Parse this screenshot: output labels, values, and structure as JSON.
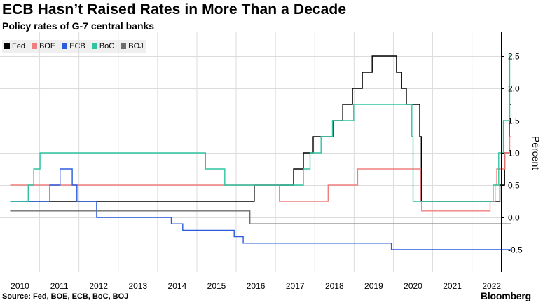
{
  "header": {
    "title": "ECB Hasn’t Raised Rates in More Than a Decade",
    "subtitle": "Policy rates of G-7 central banks"
  },
  "footer": {
    "source": "Source: Fed, BOE, ECB, BoC, BOJ",
    "brand": "Bloomberg"
  },
  "chart_data": {
    "type": "line",
    "title": "ECB Hasn’t Raised Rates in More Than a Decade",
    "subtitle": "Policy rates of G-7 central banks",
    "xlabel": "",
    "ylabel": "Percent",
    "xlim": [
      2009.75,
      2022.35
    ],
    "ylim": [
      -0.8,
      2.75
    ],
    "x_ticks": [
      2010,
      2011,
      2012,
      2013,
      2014,
      2015,
      2016,
      2017,
      2018,
      2019,
      2020,
      2021,
      2022
    ],
    "x_tick_labels": [
      "2010",
      "2011",
      "2012",
      "2013",
      "2014",
      "2015",
      "2016",
      "2017",
      "2018",
      "2019",
      "2020",
      "2021",
      "2022"
    ],
    "y_ticks": [
      2.5,
      2.0,
      1.5,
      1.0,
      0.5,
      0.0,
      -0.5
    ],
    "y_tick_labels": [
      "2.5",
      "2.0",
      "1.5",
      "1.0",
      "0.5",
      "0.0",
      "-0.5"
    ],
    "grid": true,
    "y_axis_side": "right",
    "legend_position": "top-left",
    "series": [
      {
        "name": "Fed",
        "color": "#000000",
        "points": [
          [
            2009.75,
            0.25
          ],
          [
            2015.96,
            0.25
          ],
          [
            2015.96,
            0.5
          ],
          [
            2016.96,
            0.5
          ],
          [
            2016.96,
            0.75
          ],
          [
            2017.21,
            0.75
          ],
          [
            2017.21,
            1.0
          ],
          [
            2017.46,
            1.0
          ],
          [
            2017.46,
            1.25
          ],
          [
            2017.96,
            1.25
          ],
          [
            2017.96,
            1.5
          ],
          [
            2018.21,
            1.5
          ],
          [
            2018.21,
            1.75
          ],
          [
            2018.46,
            1.75
          ],
          [
            2018.46,
            2.0
          ],
          [
            2018.71,
            2.0
          ],
          [
            2018.71,
            2.25
          ],
          [
            2018.96,
            2.25
          ],
          [
            2018.96,
            2.5
          ],
          [
            2019.58,
            2.5
          ],
          [
            2019.58,
            2.25
          ],
          [
            2019.71,
            2.25
          ],
          [
            2019.71,
            2.0
          ],
          [
            2019.83,
            2.0
          ],
          [
            2019.83,
            1.75
          ],
          [
            2020.17,
            1.75
          ],
          [
            2020.17,
            1.25
          ],
          [
            2020.21,
            1.25
          ],
          [
            2020.21,
            0.25
          ],
          [
            2022.21,
            0.25
          ],
          [
            2022.21,
            0.5
          ],
          [
            2022.33,
            0.5
          ],
          [
            2022.33,
            1.0
          ],
          [
            2022.45,
            1.0
          ],
          [
            2022.45,
            1.75
          ],
          [
            2022.5,
            1.75
          ]
        ]
      },
      {
        "name": "BOE",
        "color": "#f07f7f",
        "points": [
          [
            2009.75,
            0.5
          ],
          [
            2016.6,
            0.5
          ],
          [
            2016.6,
            0.25
          ],
          [
            2017.84,
            0.25
          ],
          [
            2017.84,
            0.5
          ],
          [
            2018.59,
            0.5
          ],
          [
            2018.59,
            0.75
          ],
          [
            2020.19,
            0.75
          ],
          [
            2020.19,
            0.25
          ],
          [
            2020.22,
            0.25
          ],
          [
            2020.22,
            0.1
          ],
          [
            2021.96,
            0.1
          ],
          [
            2021.96,
            0.25
          ],
          [
            2022.09,
            0.25
          ],
          [
            2022.09,
            0.5
          ],
          [
            2022.13,
            0.5
          ],
          [
            2022.13,
            0.75
          ],
          [
            2022.34,
            0.75
          ],
          [
            2022.34,
            1.0
          ],
          [
            2022.46,
            1.0
          ],
          [
            2022.46,
            1.25
          ],
          [
            2022.5,
            1.25
          ]
        ]
      },
      {
        "name": "ECB",
        "color": "#2b5ce0",
        "points": [
          [
            2009.75,
            0.25
          ],
          [
            2010.76,
            0.25
          ],
          [
            2010.76,
            0.5
          ],
          [
            2011.02,
            0.5
          ],
          [
            2011.02,
            0.75
          ],
          [
            2011.33,
            0.75
          ],
          [
            2011.33,
            0.5
          ],
          [
            2011.45,
            0.5
          ],
          [
            2011.45,
            0.25
          ],
          [
            2011.95,
            0.25
          ],
          [
            2011.95,
            0.0
          ],
          [
            2013.85,
            0.0
          ],
          [
            2013.85,
            -0.1
          ],
          [
            2014.14,
            -0.1
          ],
          [
            2014.14,
            -0.2
          ],
          [
            2015.45,
            -0.2
          ],
          [
            2015.45,
            -0.3
          ],
          [
            2015.68,
            -0.3
          ],
          [
            2015.68,
            -0.4
          ],
          [
            2019.45,
            -0.4
          ],
          [
            2019.45,
            -0.5
          ],
          [
            2022.5,
            -0.5
          ]
        ]
      },
      {
        "name": "BoC",
        "color": "#2fc4a0",
        "points": [
          [
            2009.75,
            0.25
          ],
          [
            2010.21,
            0.25
          ],
          [
            2010.21,
            0.5
          ],
          [
            2010.35,
            0.5
          ],
          [
            2010.35,
            0.75
          ],
          [
            2010.51,
            0.75
          ],
          [
            2010.51,
            1.0
          ],
          [
            2014.72,
            1.0
          ],
          [
            2014.72,
            0.75
          ],
          [
            2015.21,
            0.75
          ],
          [
            2015.21,
            0.5
          ],
          [
            2017.21,
            0.5
          ],
          [
            2017.21,
            0.75
          ],
          [
            2017.38,
            0.75
          ],
          [
            2017.38,
            1.0
          ],
          [
            2017.66,
            1.0
          ],
          [
            2017.66,
            1.25
          ],
          [
            2017.95,
            1.25
          ],
          [
            2017.95,
            1.5
          ],
          [
            2018.49,
            1.5
          ],
          [
            2018.49,
            1.75
          ],
          [
            2019.97,
            1.75
          ],
          [
            2019.97,
            1.25
          ],
          [
            2020.0,
            1.25
          ],
          [
            2020.0,
            0.25
          ],
          [
            2022.04,
            0.25
          ],
          [
            2022.04,
            0.5
          ],
          [
            2022.18,
            0.5
          ],
          [
            2022.18,
            1.0
          ],
          [
            2022.3,
            1.0
          ],
          [
            2022.3,
            1.5
          ],
          [
            2022.46,
            1.5
          ],
          [
            2022.46,
            2.5
          ],
          [
            2022.5,
            2.5
          ]
        ]
      },
      {
        "name": "BOJ",
        "color": "#6e6e6e",
        "points": [
          [
            2009.75,
            0.1
          ],
          [
            2015.85,
            0.1
          ],
          [
            2015.85,
            -0.1
          ],
          [
            2022.5,
            -0.1
          ]
        ]
      }
    ]
  }
}
